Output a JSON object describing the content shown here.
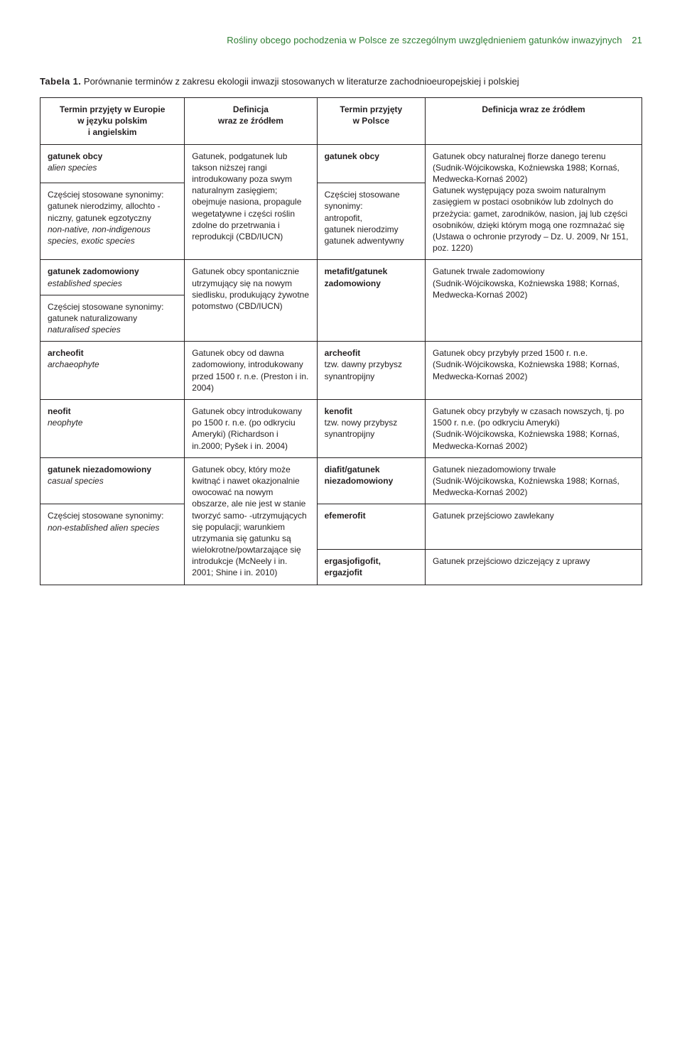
{
  "runningHead": {
    "text": "Rośliny obcego pochodzenia w Polsce ze szczególnym uwzględnieniem gatunków inwazyjnych",
    "pageNumber": "21",
    "color": "#2e7d32"
  },
  "caption": {
    "label": "Tabela 1.",
    "text": "Porównanie terminów z zakresu ekologii inwazji stosowanych w literaturze zachodnioeuropejskiej i polskiej"
  },
  "headers": {
    "c1": "Termin przyjęty w Europie\nw języku polskim\ni angielskim",
    "c2": "Definicja\nwraz ze źródłem",
    "c3": "Termin przyjęty\nw Polsce",
    "c4": "Definicja wraz ze źródłem"
  },
  "rows": [
    {
      "c1_term": "gatunek obcy",
      "c1_ital": "alien species",
      "c2": "Gatunek, podgatunek lub takson niższej rangi introdukowany poza swym naturalnym zasięgiem; obejmuje nasiona, propagule wegetatywne i części roślin zdolne do przetrwania i reprodukcji (CBD/IUCN)",
      "c3_term": "gatunek obcy",
      "c4": "Gatunek obcy naturalnej florze danego terenu\n(Sudnik-Wójcikowska, Koźniewska 1988; Kornaś, Medwecka-Kornaś 2002)\nGatunek występujący poza swoim naturalnym zasięgiem w postaci osobników lub zdolnych do przeżycia: gamet, zarodników, nasion, jaj lub części osobników, dzięki którym mogą one rozmnażać się\n(Ustawa o ochronie przyrody – Dz. U. 2009, Nr 151, poz. 1220)"
    },
    {
      "c1_syn_label": "Częściej stosowane synonimy:",
      "c1_syn_text": "gatunek nierodzimy, allochto - niczny, gatunek egzotyczny",
      "c1_syn_ital": "non-native, non-indigenous species, exotic species",
      "c3_syn_label": "Częściej stosowane synonimy:",
      "c3_syn_text": "antropofit,\ngatunek nierodzimy\ngatunek adwentywny"
    },
    {
      "c1_term": "gatunek zadomowiony",
      "c1_ital": "established species",
      "c2": "Gatunek obcy spontanicznie utrzymujący się na nowym siedlisku, produkujący żywotne potomstwo (CBD/IUCN)",
      "c3_term": "metafit/gatunek zadomowiony",
      "c4": "Gatunek trwale zadomowiony\n(Sudnik-Wójcikowska, Koźniewska 1988; Kornaś, Medwecka-Kornaś 2002)"
    },
    {
      "c1_syn_label": "Częściej stosowane synonimy:",
      "c1_syn_text": "gatunek naturalizowany",
      "c1_syn_ital": "naturalised species"
    },
    {
      "c1_term": "archeofit",
      "c1_ital": "archaeophyte",
      "c2": "Gatunek obcy od dawna zadomowiony, introdukowany przed 1500 r. n.e. (Preston i in. 2004)",
      "c3_term": "archeofit",
      "c3_text": "tzw. dawny przybysz synantropijny",
      "c4": "Gatunek obcy przybyły przed 1500 r. n.e.\n(Sudnik-Wójcikowska, Koźniewska 1988; Kornaś, Medwecka-Kornaś 2002)"
    },
    {
      "c1_term": "neofit",
      "c1_ital": "neophyte",
      "c2": "Gatunek obcy introdukowany po 1500 r. n.e. (po odkryciu Ameryki) (Richardson i in.2000; Pyšek i in. 2004)",
      "c3_term": "kenofit",
      "c3_text": "tzw. nowy przybysz synantropijny",
      "c4": "Gatunek obcy przybyły w czasach nowszych, tj. po 1500 r. n.e. (po odkryciu Ameryki)\n(Sudnik-Wójcikowska, Koźniewska 1988; Kornaś, Medwecka-Kornaś 2002)"
    },
    {
      "c1_term": "gatunek niezadomowiony",
      "c1_ital": "casual species",
      "c2": "Gatunek obcy, który może kwitnąć i nawet okazjonalnie owocować na nowym obszarze, ale nie jest w stanie tworzyć samo- -utrzymujących się populacji; warunkiem utrzymania się gatunku są wielokrotne/powtarzające się introdukcje (McNeely i in. 2001; Shine i in. 2010)",
      "c3_term": "diafit/gatunek niezadomowiony",
      "c4": "Gatunek niezadomowiony trwale\n(Sudnik-Wójcikowska, Koźniewska 1988; Kornaś, Medwecka-Kornaś 2002)"
    },
    {
      "c1_syn_label": "Częściej stosowane synonimy:",
      "c1_syn_ital": "non-established alien species",
      "c3_term": "efemerofit",
      "c4": "Gatunek przejściowo zawlekany"
    },
    {
      "c3_term": "ergasjofigofit, ergazjofit",
      "c4": "Gatunek przejściowo dziczejący z uprawy"
    }
  ]
}
